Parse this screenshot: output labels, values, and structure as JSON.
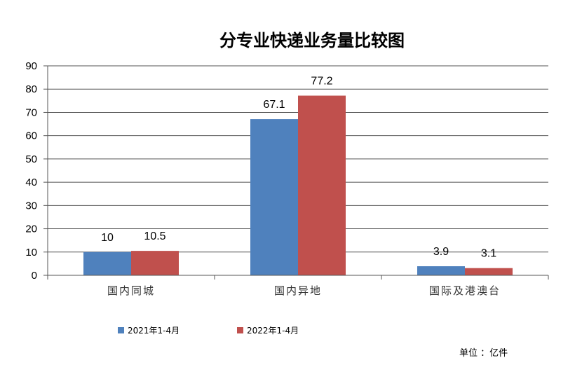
{
  "chart_data": {
    "type": "bar",
    "title": "分专业快递业务量比较图",
    "categories": [
      "国内同城",
      "国内异地",
      "国际及港澳台"
    ],
    "series": [
      {
        "name": "2021年1-4月",
        "values": [
          10,
          67.1,
          3.9
        ],
        "labels": [
          "10",
          "67.1",
          "3.9"
        ],
        "color": "#4f81bd"
      },
      {
        "name": "2022年1-4月",
        "values": [
          10.5,
          77.2,
          3.1
        ],
        "labels": [
          "10.5",
          "77.2",
          "3.1"
        ],
        "color": "#c0504d"
      }
    ],
    "ylim": [
      0,
      90
    ],
    "yticks": [
      "0",
      "10",
      "20",
      "30",
      "40",
      "50",
      "60",
      "70",
      "80",
      "90"
    ],
    "grid": true,
    "legend_position": "bottom-left",
    "unit_label": "单位 ：亿件"
  }
}
